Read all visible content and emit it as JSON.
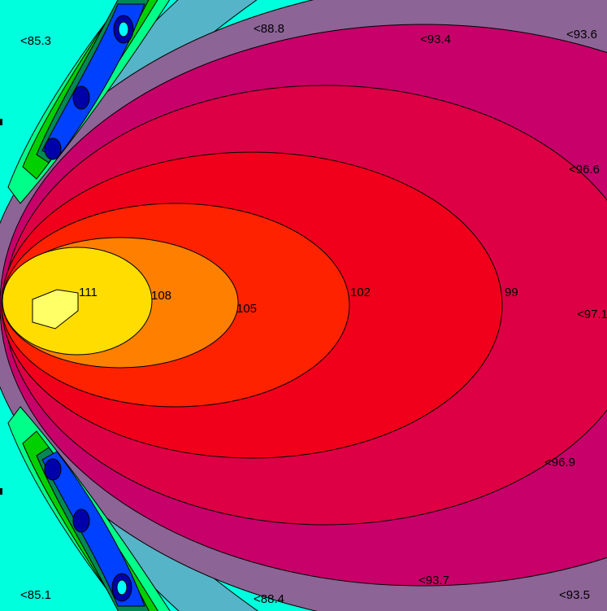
{
  "chart_data": {
    "type": "heatmap",
    "subtype": "filled-contour",
    "title": "",
    "xlabel": "",
    "ylabel": "",
    "grid": false,
    "legend": "none",
    "contour_levels": [
      {
        "value": 111,
        "label": "111",
        "color": "#FFFF66"
      },
      {
        "value": 108,
        "label": "108",
        "color": "#FFDD00"
      },
      {
        "value": 105,
        "label": "105",
        "color": "#FF8000"
      },
      {
        "value": 102,
        "label": "102",
        "color": "#FF2200"
      },
      {
        "value": 99,
        "label": "99",
        "color": "#F0001A"
      },
      {
        "value": 96,
        "label": "",
        "color": "#DD0044"
      },
      {
        "value": 93,
        "label": "",
        "color": "#C8006A"
      },
      {
        "value": 90,
        "label": "",
        "color": "#8C6496"
      },
      {
        "value": 88,
        "label": "",
        "color": "#55B4C8"
      },
      {
        "value": 86,
        "label": "",
        "color": "#00FFDD"
      }
    ],
    "lobe_colors": [
      "#00FF88",
      "#00D000",
      "#008855",
      "#0040FF",
      "#0000AA",
      "#00FFFF"
    ],
    "annotations": [
      {
        "text": "<85.3"
      },
      {
        "text": "<88.8"
      },
      {
        "text": "<93.4"
      },
      {
        "text": "<93.6"
      },
      {
        "text": "<96.6"
      },
      {
        "text": "<97.1"
      },
      {
        "text": "<96.9"
      },
      {
        "text": "<85.1"
      },
      {
        "text": "<88.4"
      },
      {
        "text": "<93.7"
      },
      {
        "text": "<93.5"
      }
    ]
  }
}
